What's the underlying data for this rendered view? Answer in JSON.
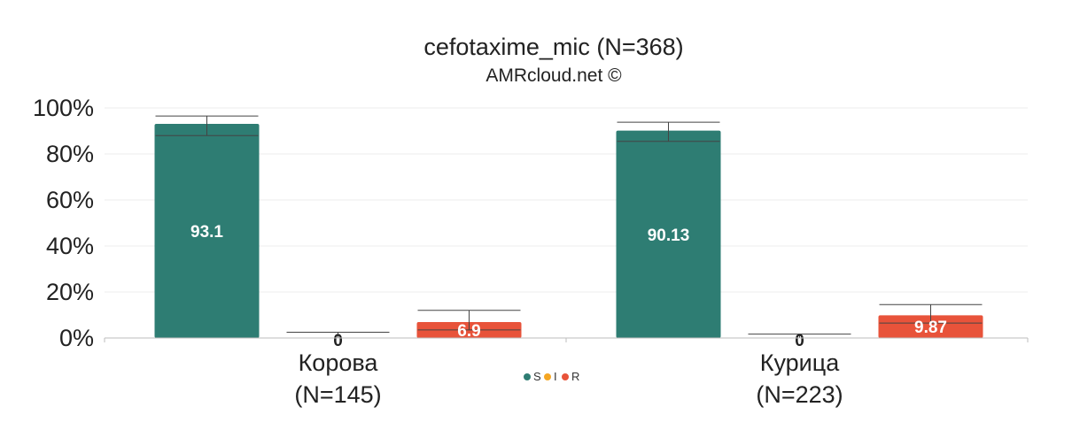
{
  "chart_data": {
    "type": "bar",
    "title": "cefotaxime_mic (N=368)",
    "subtitle": "AMRcloud.net ©",
    "xlabel": "",
    "ylabel": "",
    "ylim": [
      0,
      100
    ],
    "yticks": [
      0,
      20,
      40,
      60,
      80,
      100
    ],
    "ytick_labels": [
      "0%",
      "20%",
      "40%",
      "60%",
      "80%",
      "100%"
    ],
    "grid": true,
    "legend_position": "bottom-center",
    "categories": [
      {
        "name": "Корова",
        "n_label": "(N=145)"
      },
      {
        "name": "Курица",
        "n_label": "(N=223)"
      }
    ],
    "series": [
      {
        "name": "S",
        "color": "#2e7d73",
        "values": [
          93.1,
          90.13
        ],
        "labels": [
          "93.1",
          "90.13"
        ],
        "ci_low": [
          88.0,
          85.5
        ],
        "ci_high": [
          96.5,
          93.8
        ]
      },
      {
        "name": "I",
        "color": "#f5a623",
        "values": [
          0,
          0
        ],
        "labels": [
          "0",
          "0"
        ],
        "ci_low": [
          0,
          0
        ],
        "ci_high": [
          2.5,
          1.7
        ]
      },
      {
        "name": "R",
        "color": "#e8533a",
        "values": [
          6.9,
          9.87
        ],
        "labels": [
          "6.9",
          "9.87"
        ],
        "ci_low": [
          3.5,
          6.5
        ],
        "ci_high": [
          12.0,
          14.5
        ]
      }
    ]
  }
}
